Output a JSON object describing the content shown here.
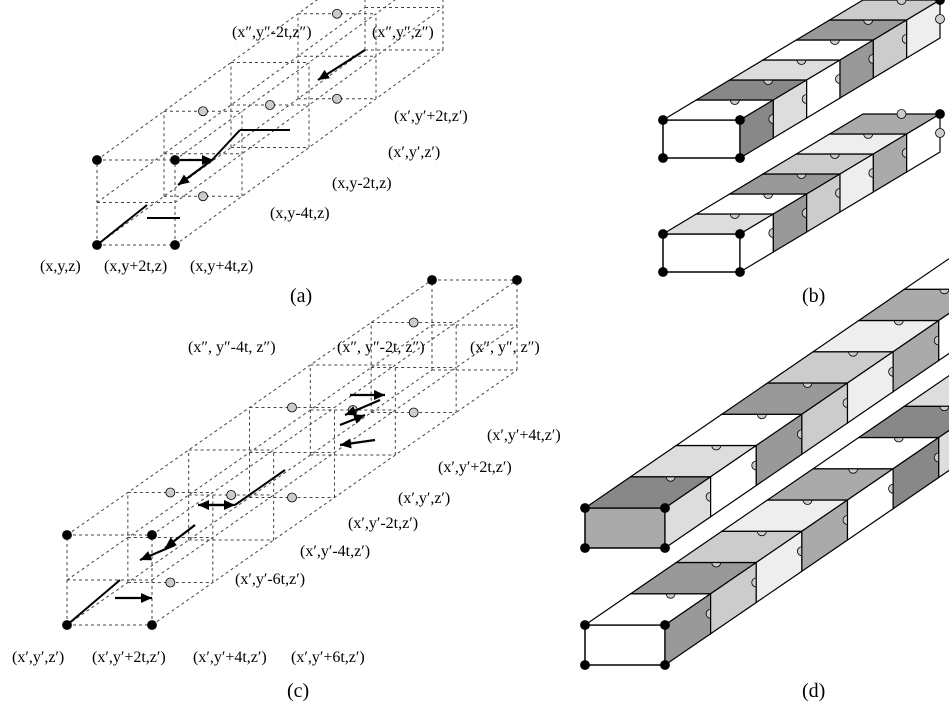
{
  "panel_a": {
    "labels": [
      "(x″,y″-2t,z″)",
      "(x″,y″,z″)",
      "(x′,y′+2t,z′)",
      "(x′,y′,z′)",
      "(x,y-2t,z)",
      "(x,y-4t,z)",
      "(x,y,z)",
      "(x,y+2t,z)",
      "(x,y+4t,z)"
    ],
    "caption": "(a)"
  },
  "panel_b": {
    "caption": "(b)"
  },
  "panel_c": {
    "labels": [
      "(x″, y″-4t, z″)",
      "(x″, y″-2t, z″)",
      "(x″, y″, z″)",
      "(x′,y′+4t,z′)",
      "(x′,y′+2t,z′)",
      "(x′,y′,z′)",
      "(x′,y′-2t,z′)",
      "(x′,y′-4t,z′)",
      "(x′,y′-6t,z′)",
      "(x′,y′,z′)",
      "(x′,y′+2t,z′)",
      "(x′,y′+4t,z′)",
      "(x′,y′+6t,z′)"
    ],
    "caption": "(c)"
  },
  "panel_d": {
    "caption": "(d)"
  }
}
